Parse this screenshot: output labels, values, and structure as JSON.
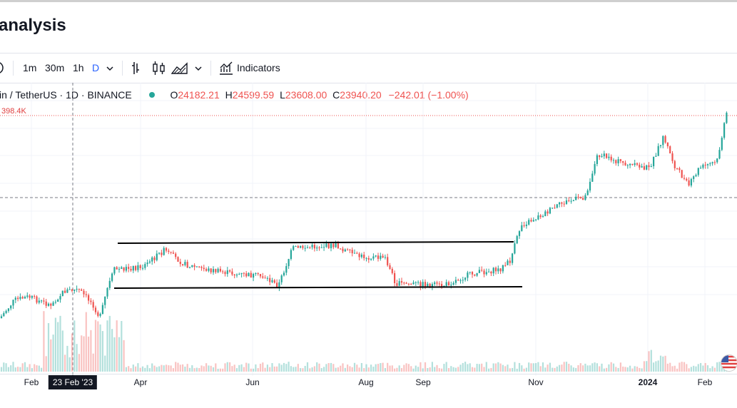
{
  "page": {
    "title": "analysis"
  },
  "toolbar": {
    "intervals": [
      "1m",
      "30m",
      "1h",
      "D"
    ],
    "active_interval": "D",
    "indicators_label": "Indicators"
  },
  "symbol": {
    "name": "in / TetherUS · 1D · BINANCE",
    "open_prefix": "O",
    "open": "24182.21",
    "high_prefix": "H",
    "high": "24599.59",
    "low_prefix": "L",
    "low": "23608.00",
    "close_prefix": "C",
    "close": "23940.20",
    "change": "−242.01 (−1.00%)",
    "status_color": "#26a69a"
  },
  "price_label": "398.4K",
  "x_axis": {
    "labels": [
      "Feb",
      "Apr",
      "Jun",
      "Aug",
      "Sep",
      "Nov",
      "2024",
      "Feb"
    ],
    "crosshair_label": "23 Feb '23"
  },
  "colors": {
    "up": "#26a69a",
    "down": "#ef5350",
    "trendline": "#000000",
    "accent": "#2962ff"
  },
  "chart_data": {
    "type": "candlestick",
    "title": "",
    "xlabel": "",
    "ylabel": "",
    "x_ticks": [
      "Feb",
      "Apr",
      "Jun",
      "Aug",
      "Sep",
      "Nov",
      "2024",
      "Feb"
    ],
    "close_trend": [
      {
        "x": "Feb",
        "close": 23300
      },
      {
        "x": "Apr",
        "close": 28400
      },
      {
        "x": "Jun",
        "close": 27000
      },
      {
        "x": "Aug",
        "close": 29200
      },
      {
        "x": "Sep",
        "close": 26000
      },
      {
        "x": "Nov",
        "close": 34500
      },
      {
        "x": "2024",
        "close": 42500
      },
      {
        "x": "Feb",
        "close": 47000
      }
    ],
    "grid": true
  }
}
